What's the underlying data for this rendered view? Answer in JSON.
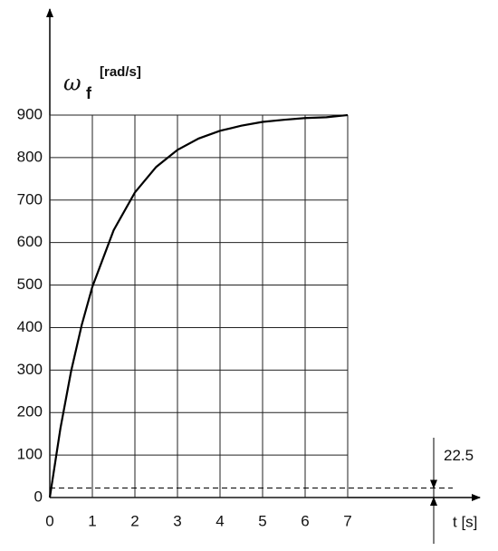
{
  "chart_data": {
    "type": "line",
    "y_label": {
      "symbol": "ω",
      "subscript": "f",
      "unit": "[rad/s]"
    },
    "x_label": "t [s]",
    "x": [
      0,
      0.25,
      0.5,
      0.75,
      1,
      1.5,
      2,
      2.5,
      3,
      3.5,
      4,
      4.5,
      5,
      5.5,
      6,
      6.5,
      7
    ],
    "values": [
      0,
      163,
      297,
      406,
      496,
      629,
      718,
      778,
      818,
      845,
      863,
      875,
      884,
      889,
      893,
      895,
      900
    ],
    "color": "#000000",
    "threshold": 22.5,
    "xlim": [
      0,
      7
    ],
    "ylim": [
      0,
      900
    ],
    "xticks": [
      0,
      1,
      2,
      3,
      4,
      5,
      6,
      7
    ],
    "yticks": [
      0,
      100,
      200,
      300,
      400,
      500,
      600,
      700,
      800,
      900
    ],
    "grid": true
  }
}
